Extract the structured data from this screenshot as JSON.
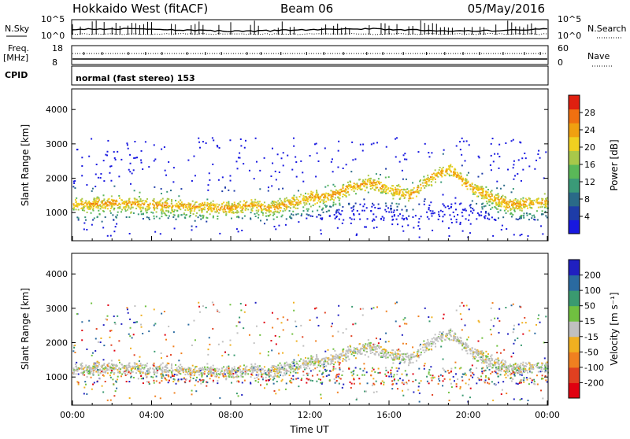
{
  "header": {
    "station": "Hokkaido West (fitACF)",
    "beam": "Beam 06",
    "date": "05/May/2016"
  },
  "aux": {
    "nsky_label": "N.Sky",
    "nsearch_label": "N.Search",
    "noise_ticks": [
      "10^5",
      "10^0"
    ],
    "freq_label_1": "Freq.",
    "freq_label_2": "[MHz]",
    "freq_ticks": [
      "18",
      "8"
    ],
    "nave_label": "Nave",
    "nave_ticks": [
      "60",
      "0"
    ],
    "cpid_label": "CPID",
    "cpid_text": "normal (fast stereo) 153"
  },
  "chart_data": [
    {
      "type": "heatmap",
      "name": "power",
      "xlabel": "Time UT",
      "ylabel": "Slant Range [km]",
      "x_ticks": [
        "00:00",
        "04:00",
        "08:00",
        "12:00",
        "16:00",
        "20:00",
        "00:00"
      ],
      "xlim_hours": [
        0,
        24
      ],
      "y_ticks": [
        1000,
        2000,
        3000,
        4000
      ],
      "ylim": [
        180,
        4600
      ],
      "colorbar": {
        "label": "Power [dB]",
        "ticks": [
          "4",
          "8",
          "12",
          "16",
          "20",
          "24",
          "28"
        ],
        "range": [
          0,
          30
        ],
        "colors": [
          "#1818e0",
          "#1e3ca8",
          "#2a6a88",
          "#3a9a78",
          "#5ab858",
          "#a8c84a",
          "#f0d020",
          "#f0a010",
          "#f07010",
          "#e02010"
        ]
      },
      "echo_band_center_km": [
        [
          0,
          1250
        ],
        [
          2,
          1300
        ],
        [
          4,
          1250
        ],
        [
          6,
          1200
        ],
        [
          8,
          1150
        ],
        [
          9,
          1250
        ],
        [
          10,
          1150
        ],
        [
          11,
          1300
        ],
        [
          12,
          1450
        ],
        [
          13,
          1500
        ],
        [
          14,
          1750
        ],
        [
          15,
          1900
        ],
        [
          16,
          1700
        ],
        [
          17,
          1500
        ],
        [
          18,
          2000
        ],
        [
          19,
          2300
        ],
        [
          20,
          1800
        ],
        [
          21,
          1500
        ],
        [
          22,
          1250
        ],
        [
          23,
          1300
        ],
        [
          24,
          1350
        ]
      ]
    },
    {
      "type": "heatmap",
      "name": "velocity",
      "xlabel": "Time UT",
      "ylabel": "Slant Range [km]",
      "x_ticks": [
        "00:00",
        "04:00",
        "08:00",
        "12:00",
        "16:00",
        "20:00",
        "00:00"
      ],
      "xlim_hours": [
        0,
        24
      ],
      "y_ticks": [
        1000,
        2000,
        3000,
        4000
      ],
      "ylim": [
        180,
        4600
      ],
      "colorbar": {
        "label": "Velocity [m s⁻¹]",
        "ticks": [
          "200",
          "100",
          "50",
          "15",
          "-15",
          "-50",
          "-100",
          "-200"
        ],
        "colors": [
          "#2020c0",
          "#2a6aa0",
          "#3a9a70",
          "#70c040",
          "#c0c0c0",
          "#f0b020",
          "#f08020",
          "#e04020",
          "#e00010"
        ]
      }
    }
  ]
}
